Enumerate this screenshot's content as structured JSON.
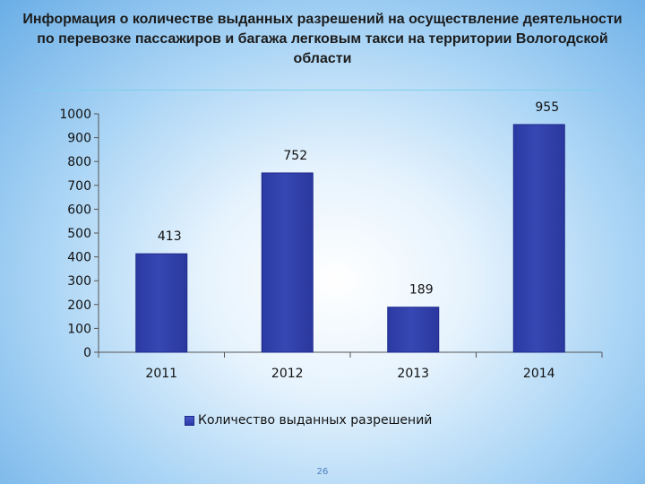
{
  "slide": {
    "title": "Информация о количестве выданных разрешений на осуществление деятельности по перевозке пассажиров и багажа легковым такси на территории Вологодской области",
    "page_number": "26"
  },
  "colors": {
    "bar": "#3747b3",
    "bar_edge": "#1f2a8c",
    "axis": "#555555",
    "title_rule": "#7fd0ea"
  },
  "chart_data": {
    "type": "bar",
    "title": "",
    "xlabel": "",
    "ylabel": "",
    "categories": [
      "2011",
      "2012",
      "2013",
      "2014"
    ],
    "series": [
      {
        "name": "Количество выданных разрешений",
        "values": [
          413,
          752,
          189,
          955
        ]
      }
    ],
    "data_labels": [
      "413",
      "752",
      "189",
      "955"
    ],
    "ylim": [
      0,
      1000
    ],
    "yticks": [
      0,
      100,
      200,
      300,
      400,
      500,
      600,
      700,
      800,
      900,
      1000
    ],
    "grid": false,
    "legend_position": "bottom"
  }
}
